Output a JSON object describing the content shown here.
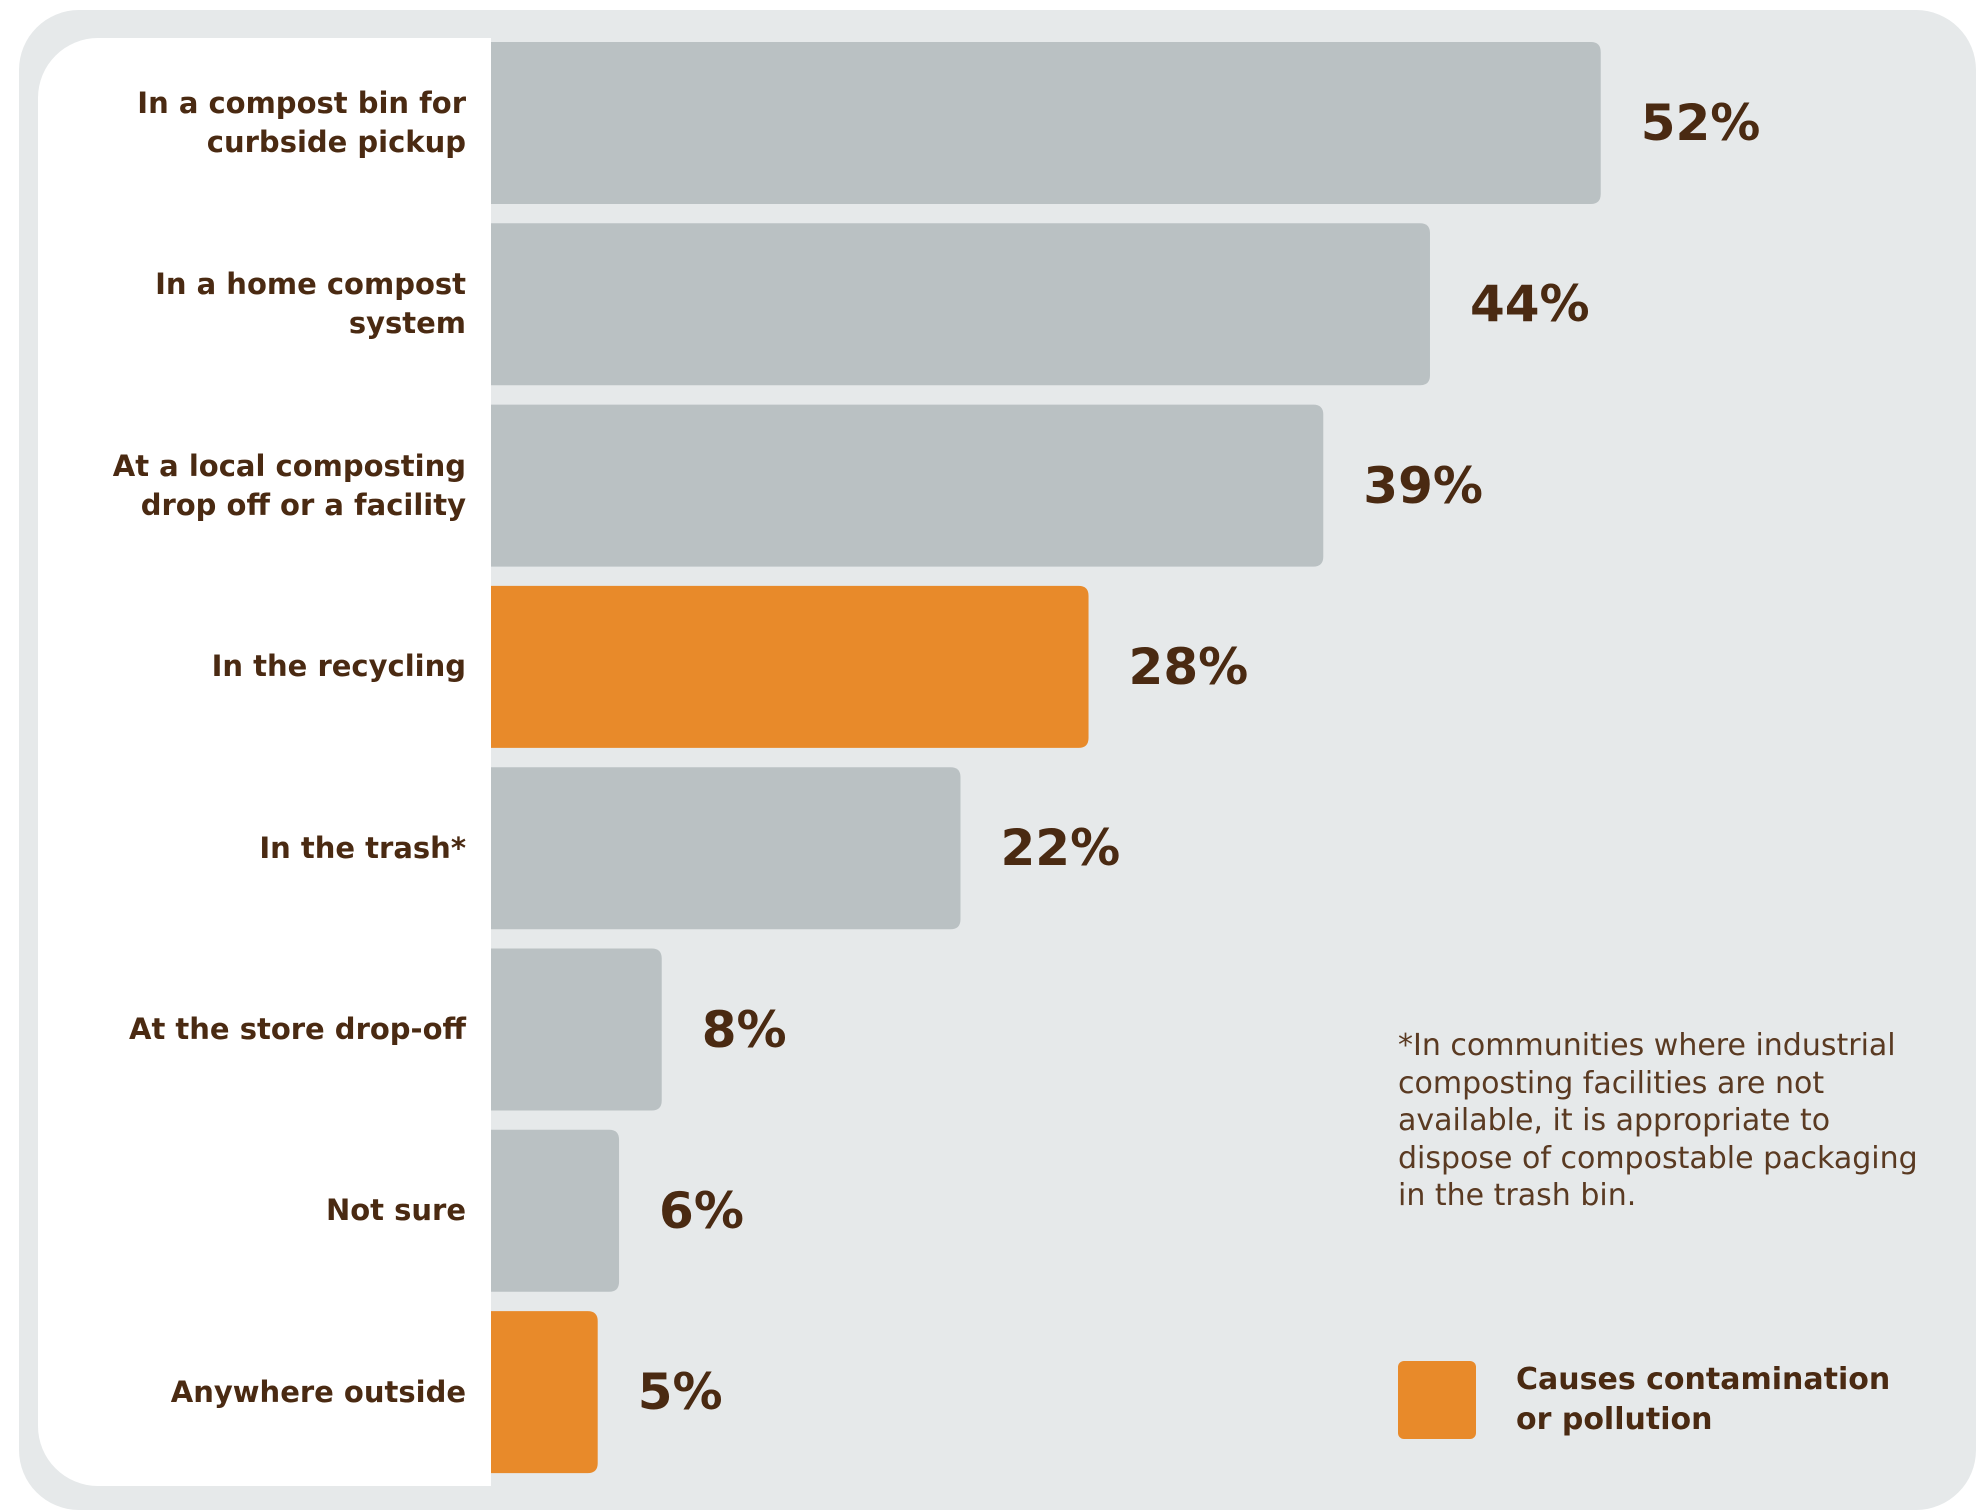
{
  "chart_data": {
    "type": "bar",
    "orientation": "horizontal",
    "categories": [
      "In a compost bin for curbside pickup",
      "In a home compost system",
      "At a local composting drop off or a facility",
      "In the recycling",
      "In the trash*",
      "At the store drop-off",
      "Not sure",
      "Anywhere outside"
    ],
    "values": [
      52,
      44,
      39,
      28,
      22,
      8,
      6,
      5
    ],
    "value_labels": [
      "52%",
      "44%",
      "39%",
      "28%",
      "22%",
      "8%",
      "6%",
      "5%"
    ],
    "colors": [
      "#bac1c3",
      "#bac1c3",
      "#bac1c3",
      "#e88a2a",
      "#bac1c3",
      "#bac1c3",
      "#bac1c3",
      "#e88a2a"
    ],
    "legend": {
      "label": "Causes contamination or pollution",
      "color": "#e88a2a"
    },
    "annotation": "*In communities where industrial composting facilities are not available, it is appropriate to dispose of compostable packaging in the trash bin."
  }
}
